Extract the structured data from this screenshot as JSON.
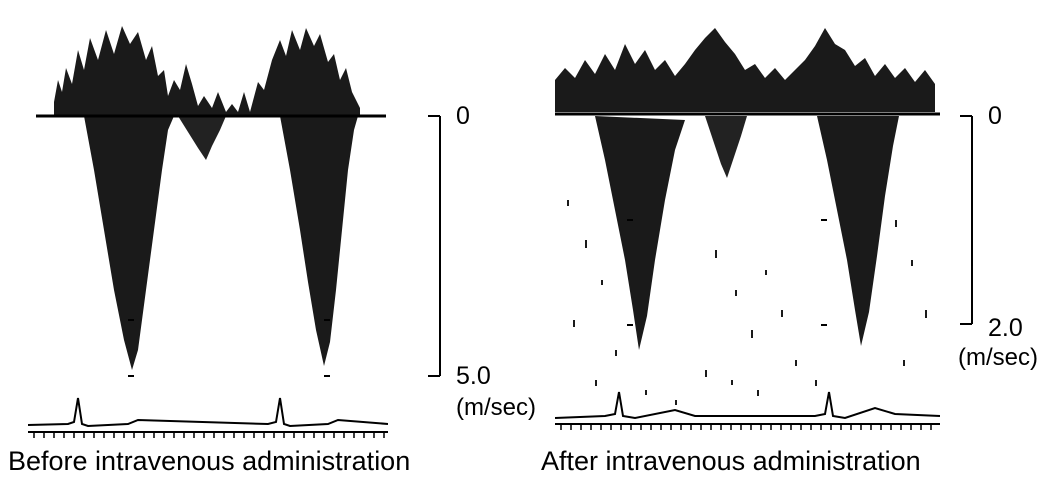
{
  "panels": [
    {
      "caption": "Before intravenous administration",
      "scale_top_label": "0",
      "scale_bottom_label": "5.0",
      "scale_unit": "(m/sec)"
    },
    {
      "caption": "After intravenous administration",
      "scale_top_label": "0",
      "scale_bottom_label": "2.0",
      "scale_unit": "(m/sec)"
    }
  ],
  "colors": {
    "ink": "#000000",
    "background": "#ffffff",
    "spectral_fill": "#1a1a1a"
  }
}
